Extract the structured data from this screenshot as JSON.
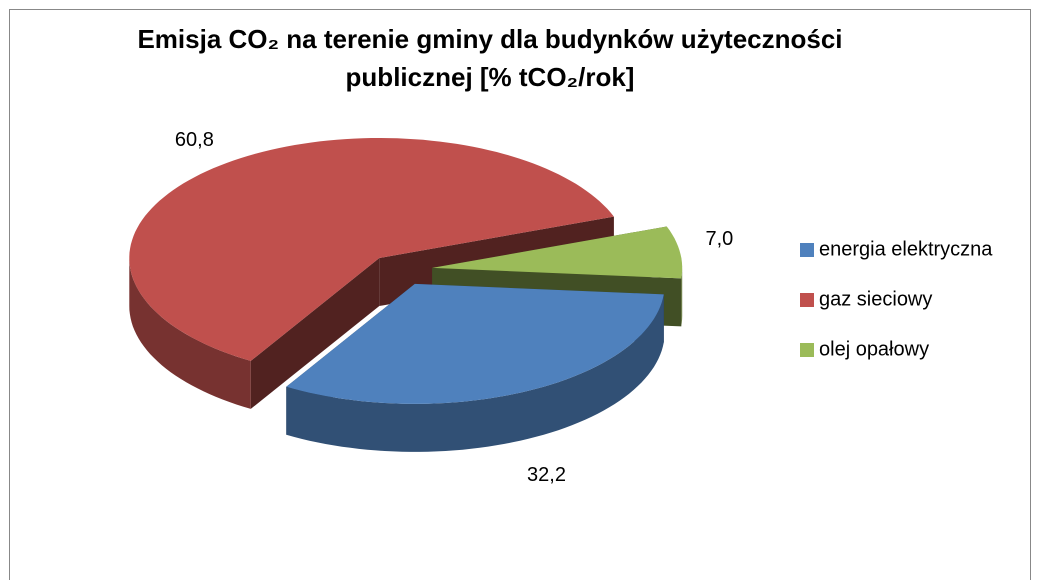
{
  "chart_data": {
    "type": "pie",
    "title": "Emisja CO₂ na terenie gminy dla budynków użyteczności publicznej [% tCO₂/rok]",
    "categories": [
      "energia elektryczna",
      "gaz sieciowy",
      "olej opałowy"
    ],
    "values": [
      32.2,
      60.8,
      7.0
    ],
    "value_labels": [
      "32,2",
      "60,8",
      "7,0"
    ],
    "colors": [
      "#4f81bd",
      "#c0504d",
      "#9bbb59"
    ],
    "legend": "right"
  }
}
